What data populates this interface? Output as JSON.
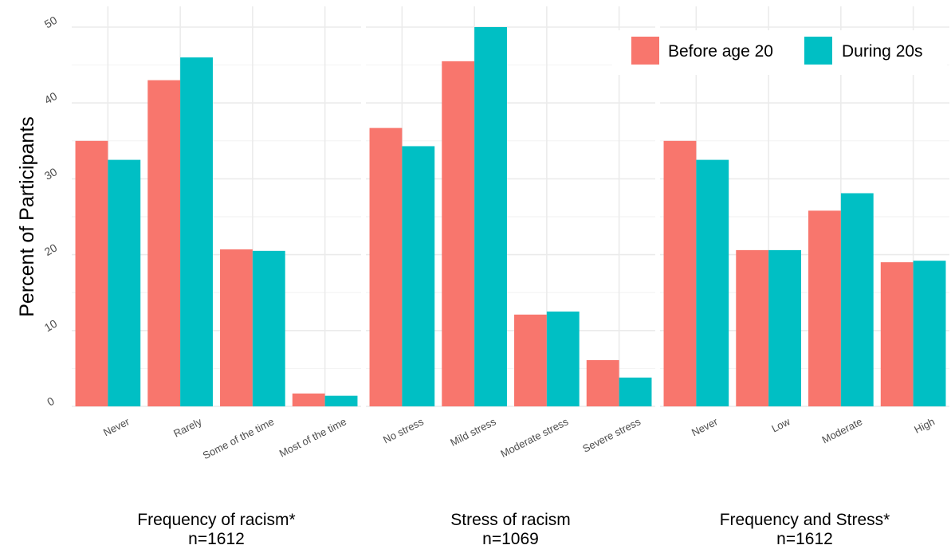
{
  "chart_data": {
    "type": "bar",
    "ylabel": "Percent of Participants",
    "ylim": [
      0,
      50
    ],
    "yticks": [
      0,
      10,
      20,
      30,
      40,
      50
    ],
    "grid": true,
    "legend": {
      "placement": "top-right",
      "entries": [
        {
          "name": "Before age 20",
          "color": "#F8766D"
        },
        {
          "name": "During 20s",
          "color": "#00BFC4"
        }
      ]
    },
    "panels": [
      {
        "title": "Frequency of racism*",
        "subtitle": "n=1612",
        "categories": [
          "Never",
          "Rarely",
          "Some of the time",
          "Most of the time"
        ],
        "series": [
          {
            "name": "Before age 20",
            "values": [
              35.0,
              43.0,
              20.7,
              1.7
            ]
          },
          {
            "name": "During 20s",
            "values": [
              32.5,
              46.0,
              20.5,
              1.4
            ]
          }
        ]
      },
      {
        "title": "Stress of racism",
        "subtitle": "n=1069",
        "categories": [
          "No stress",
          "Mild stress",
          "Moderate stress",
          "Severe stress"
        ],
        "series": [
          {
            "name": "Before age 20",
            "values": [
              36.7,
              45.5,
              12.1,
              6.1
            ]
          },
          {
            "name": "During 20s",
            "values": [
              34.3,
              50.0,
              12.5,
              3.8
            ]
          }
        ]
      },
      {
        "title": "Frequency and Stress*",
        "subtitle": "n=1612",
        "categories": [
          "Never",
          "Low",
          "Moderate",
          "High"
        ],
        "series": [
          {
            "name": "Before age 20",
            "values": [
              35.0,
              20.6,
              25.8,
              19.0
            ]
          },
          {
            "name": "During 20s",
            "values": [
              32.5,
              20.6,
              28.1,
              19.2
            ]
          }
        ]
      }
    ]
  }
}
